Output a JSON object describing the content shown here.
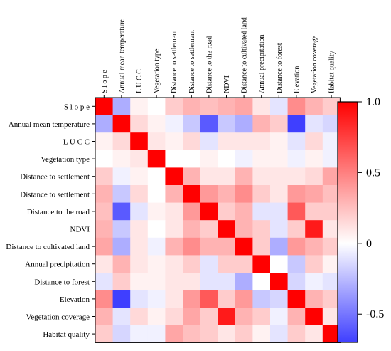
{
  "chart_data": {
    "type": "heatmap",
    "row_labels": [
      "Slope",
      "Annual mean temperature",
      "LUCC",
      "Vegetation type",
      "Distance to settlement",
      "Distance to settlement",
      "Distance to the road",
      "NDVI",
      "Distance to cultivated land",
      "Annual precipitation",
      "Distance to forest",
      "Elevation",
      "Vegetation coverage",
      "Habitat quality"
    ],
    "row_labels_display": [
      "S l o p e",
      "Annual mean temperature",
      "L U C C",
      "Vegetation type",
      "Distance to settlement",
      "Distance to settlement",
      "Distance to the road",
      "NDVI",
      "Distance to cultivated land",
      "Annual precipitation",
      "Distance to forest",
      "Elevation",
      "Vegetation coverage",
      "Habitat quality"
    ],
    "col_labels_display": [
      "S l o p e",
      "Annual mean temperature",
      "L U C C",
      "Vegetation type",
      "Distance to settlement",
      "Distance to settlement",
      "Distance to the road",
      "NDVI",
      "Distance to cultivated land",
      "Annual precipitation",
      "Distance to forest",
      "Elevation",
      "Vegetation coverage",
      "Habitat quality"
    ],
    "values": [
      [
        1.0,
        -0.3,
        0.05,
        0.0,
        0.2,
        0.3,
        0.25,
        0.3,
        0.35,
        0.1,
        -0.1,
        0.45,
        0.3,
        0.2
      ],
      [
        -0.3,
        1.0,
        0.15,
        0.05,
        -0.05,
        -0.2,
        -0.6,
        -0.2,
        -0.3,
        0.3,
        0.2,
        -0.7,
        -0.1,
        -0.15
      ],
      [
        0.05,
        0.15,
        1.0,
        0.1,
        0.05,
        0.15,
        -0.1,
        0.1,
        0.1,
        0.1,
        0.05,
        -0.1,
        0.15,
        -0.05
      ],
      [
        0.0,
        0.05,
        0.1,
        1.0,
        0.0,
        0.0,
        0.05,
        0.0,
        -0.05,
        0.05,
        0.05,
        -0.05,
        0.05,
        -0.05
      ],
      [
        0.2,
        -0.05,
        0.05,
        0.0,
        1.0,
        0.3,
        0.1,
        0.1,
        0.3,
        0.1,
        0.1,
        0.1,
        0.15,
        0.35
      ],
      [
        0.3,
        -0.2,
        0.15,
        0.0,
        0.3,
        1.0,
        0.4,
        0.3,
        0.45,
        0.2,
        0.1,
        0.4,
        0.35,
        0.25
      ],
      [
        0.25,
        -0.6,
        -0.1,
        0.05,
        0.1,
        0.4,
        1.0,
        0.2,
        0.3,
        -0.1,
        -0.1,
        0.65,
        0.2,
        0.2
      ],
      [
        0.3,
        -0.2,
        0.1,
        0.0,
        0.1,
        0.3,
        0.2,
        1.0,
        0.3,
        0.2,
        -0.1,
        0.2,
        0.9,
        0.1
      ],
      [
        0.35,
        -0.3,
        0.1,
        -0.05,
        0.3,
        0.45,
        0.3,
        0.3,
        1.0,
        0.2,
        -0.3,
        0.4,
        0.3,
        0.2
      ],
      [
        0.1,
        0.3,
        0.1,
        0.05,
        0.1,
        0.2,
        -0.1,
        0.2,
        0.2,
        1.0,
        0.0,
        -0.2,
        0.2,
        0.05
      ],
      [
        -0.1,
        0.2,
        0.05,
        0.05,
        0.1,
        0.1,
        -0.1,
        -0.1,
        -0.3,
        0.0,
        1.0,
        -0.15,
        -0.05,
        -0.1
      ],
      [
        0.45,
        -0.7,
        -0.1,
        -0.05,
        0.1,
        0.4,
        0.65,
        0.2,
        0.4,
        -0.2,
        -0.15,
        1.0,
        0.3,
        0.2
      ],
      [
        0.3,
        -0.1,
        0.15,
        0.05,
        0.15,
        0.35,
        0.2,
        0.9,
        0.3,
        0.2,
        -0.05,
        0.3,
        1.0,
        0.1
      ],
      [
        0.2,
        -0.15,
        -0.05,
        -0.05,
        0.35,
        0.25,
        0.2,
        0.1,
        0.2,
        0.05,
        -0.1,
        0.2,
        0.1,
        1.0
      ]
    ],
    "colorbar": {
      "ticks": [
        "1.0",
        "0.5",
        "0",
        "-0.5"
      ],
      "tick_values": [
        1.0,
        0.5,
        0,
        -0.5
      ],
      "vmin": -0.7,
      "vmax": 1.0,
      "colors": {
        "negative": "#3f3fff",
        "neutral": "#ffffff",
        "positive": "#ff0000"
      }
    }
  }
}
